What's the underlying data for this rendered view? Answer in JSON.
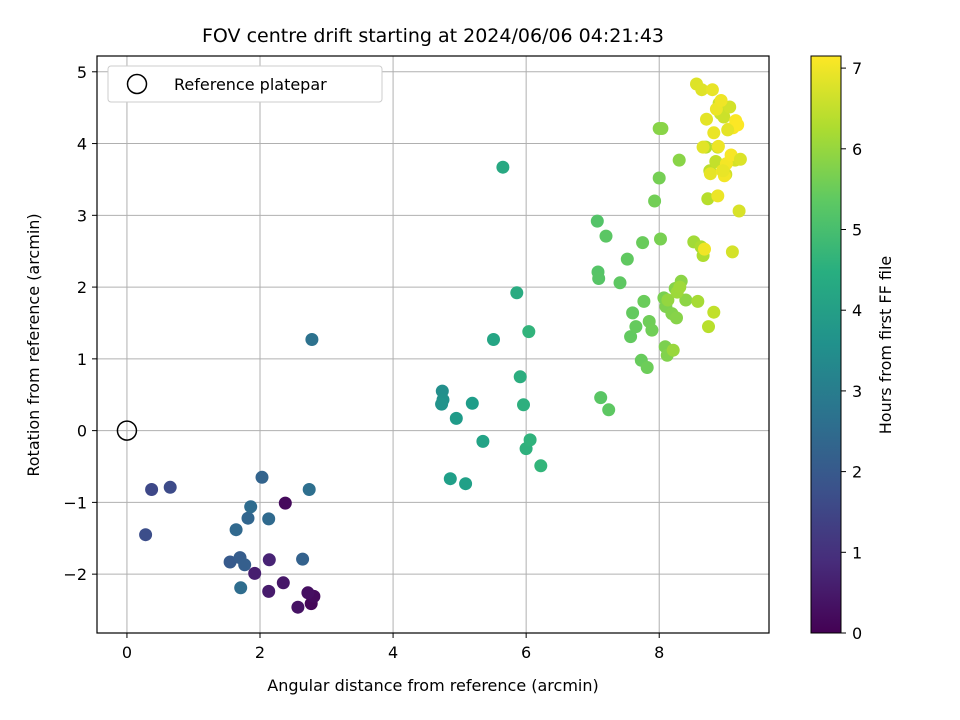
{
  "chart_data": {
    "type": "scatter",
    "title": "FOV centre drift starting at 2024/06/06 04:21:43",
    "xlabel": "Angular distance from reference (arcmin)",
    "ylabel": "Rotation from reference (arcmin)",
    "xlim": [
      -0.45,
      9.65
    ],
    "ylim": [
      -2.82,
      5.22
    ],
    "xticks": [
      0,
      2,
      4,
      6,
      8
    ],
    "xtick_labels": [
      "0",
      "2",
      "4",
      "6",
      "8"
    ],
    "yticks": [
      -2,
      -1,
      0,
      1,
      2,
      3,
      4,
      5
    ],
    "ytick_labels": [
      "−2",
      "−1",
      "0",
      "1",
      "2",
      "3",
      "4",
      "5"
    ],
    "grid": true,
    "legend": {
      "position": "top-left",
      "entries": [
        "Reference platepar"
      ]
    },
    "reference_point": {
      "x": 0,
      "y": 0,
      "marker": "open-circle"
    },
    "colorbar": {
      "label": "Hours from first FF file",
      "min": 0,
      "max": 7.15,
      "ticks": [
        0,
        1,
        2,
        3,
        4,
        5,
        6,
        7
      ],
      "tick_labels": [
        "0",
        "1",
        "2",
        "3",
        "4",
        "5",
        "6",
        "7"
      ],
      "colormap": "viridis"
    },
    "x": [
      2.77,
      2.81,
      2.72,
      2.57,
      2.35,
      2.13,
      1.92,
      2.14,
      2.38,
      0.37,
      0.65,
      0.28,
      1.55,
      1.7,
      1.77,
      2.64,
      2.03,
      1.82,
      1.64,
      2.13,
      1.86,
      1.71,
      2.74,
      2.78,
      4.74,
      4.75,
      4.73,
      4.95,
      5.19,
      4.86,
      5.09,
      5.35,
      5.51,
      5.65,
      5.86,
      5.91,
      5.96,
      6.0,
      6.06,
      6.04,
      6.22,
      7.07,
      7.08,
      7.09,
      7.12,
      7.2,
      7.24,
      7.41,
      7.52,
      7.57,
      7.6,
      7.65,
      7.73,
      7.75,
      7.77,
      7.82,
      7.85,
      7.89,
      7.93,
      8.0,
      8.02,
      8.07,
      8.09,
      8.1,
      8.12,
      8.19,
      8.24,
      8.26,
      8.3,
      8.33,
      8.4,
      8.0,
      8.04,
      8.13,
      8.21,
      8.27,
      8.31,
      8.52,
      8.58,
      8.63,
      8.66,
      8.7,
      8.73,
      8.74,
      8.76,
      8.82,
      8.85,
      8.88,
      8.9,
      8.92,
      8.97,
      9.0,
      9.06,
      9.1,
      9.14,
      8.56,
      8.64,
      8.66,
      8.71,
      8.77,
      8.8,
      8.82,
      8.86,
      8.89,
      8.93,
      8.95,
      8.98,
      9.01,
      9.04,
      9.08,
      9.11,
      9.15,
      9.18,
      9.2,
      9.22,
      9.03,
      8.96,
      8.88,
      8.68
    ],
    "y": [
      -2.41,
      -2.31,
      -2.26,
      -2.46,
      -2.12,
      -2.24,
      -1.99,
      -1.8,
      -1.01,
      -0.82,
      -0.79,
      -1.45,
      -1.83,
      -1.77,
      -1.87,
      -1.79,
      -0.65,
      -1.22,
      -1.38,
      -1.23,
      -1.06,
      -2.19,
      -0.82,
      1.27,
      0.55,
      0.43,
      0.37,
      0.17,
      0.38,
      -0.67,
      -0.74,
      -0.15,
      1.27,
      3.67,
      1.92,
      0.75,
      0.36,
      -0.25,
      -0.13,
      1.38,
      -0.49,
      2.92,
      2.21,
      2.12,
      0.46,
      2.71,
      0.29,
      2.06,
      2.39,
      1.31,
      1.64,
      1.45,
      0.98,
      2.62,
      1.8,
      0.88,
      1.52,
      1.4,
      3.2,
      3.52,
      2.67,
      1.85,
      1.17,
      1.73,
      1.05,
      1.63,
      1.98,
      1.57,
      3.77,
      2.08,
      1.82,
      4.21,
      4.21,
      1.82,
      1.12,
      1.93,
      2.0,
      2.63,
      1.8,
      2.56,
      2.44,
      3.95,
      3.23,
      1.45,
      3.62,
      1.65,
      3.75,
      3.95,
      4.56,
      4.42,
      4.37,
      3.57,
      4.51,
      2.49,
      3.77,
      4.83,
      4.75,
      3.95,
      4.34,
      3.58,
      4.75,
      4.15,
      4.48,
      3.96,
      4.6,
      3.62,
      3.55,
      3.72,
      4.2,
      3.84,
      4.22,
      4.32,
      4.26,
      3.06,
      3.78,
      4.19,
      3.62,
      3.27,
      2.53
    ],
    "c": [
      0.12,
      0.2,
      0.28,
      0.36,
      0.44,
      0.52,
      0.6,
      0.72,
      0.18,
      1.55,
      1.62,
      1.7,
      2.02,
      2.1,
      2.15,
      2.22,
      2.28,
      2.34,
      2.4,
      2.45,
      2.5,
      2.55,
      2.6,
      2.7,
      3.55,
      3.6,
      3.65,
      3.9,
      3.95,
      4.0,
      4.05,
      4.12,
      4.2,
      4.3,
      4.38,
      4.45,
      4.5,
      4.55,
      4.6,
      4.65,
      4.7,
      5.2,
      5.22,
      5.25,
      5.28,
      5.3,
      5.33,
      5.35,
      5.38,
      5.4,
      5.42,
      5.45,
      5.48,
      5.5,
      5.52,
      5.55,
      5.58,
      5.6,
      5.62,
      5.65,
      5.68,
      5.7,
      5.72,
      5.75,
      5.78,
      5.8,
      5.82,
      5.85,
      5.88,
      5.9,
      5.92,
      5.85,
      5.88,
      6.0,
      6.05,
      6.1,
      6.12,
      6.15,
      6.2,
      6.25,
      6.3,
      6.35,
      6.38,
      6.4,
      6.45,
      6.5,
      6.52,
      6.55,
      6.58,
      6.6,
      6.62,
      6.65,
      6.68,
      6.7,
      6.72,
      6.8,
      6.82,
      6.85,
      6.88,
      6.9,
      6.92,
      6.94,
      6.96,
      6.98,
      7.0,
      7.02,
      7.04,
      7.05,
      7.06,
      7.08,
      7.1,
      7.12,
      7.14,
      6.75,
      6.78,
      6.88,
      6.93,
      6.97,
      7.01
    ]
  }
}
